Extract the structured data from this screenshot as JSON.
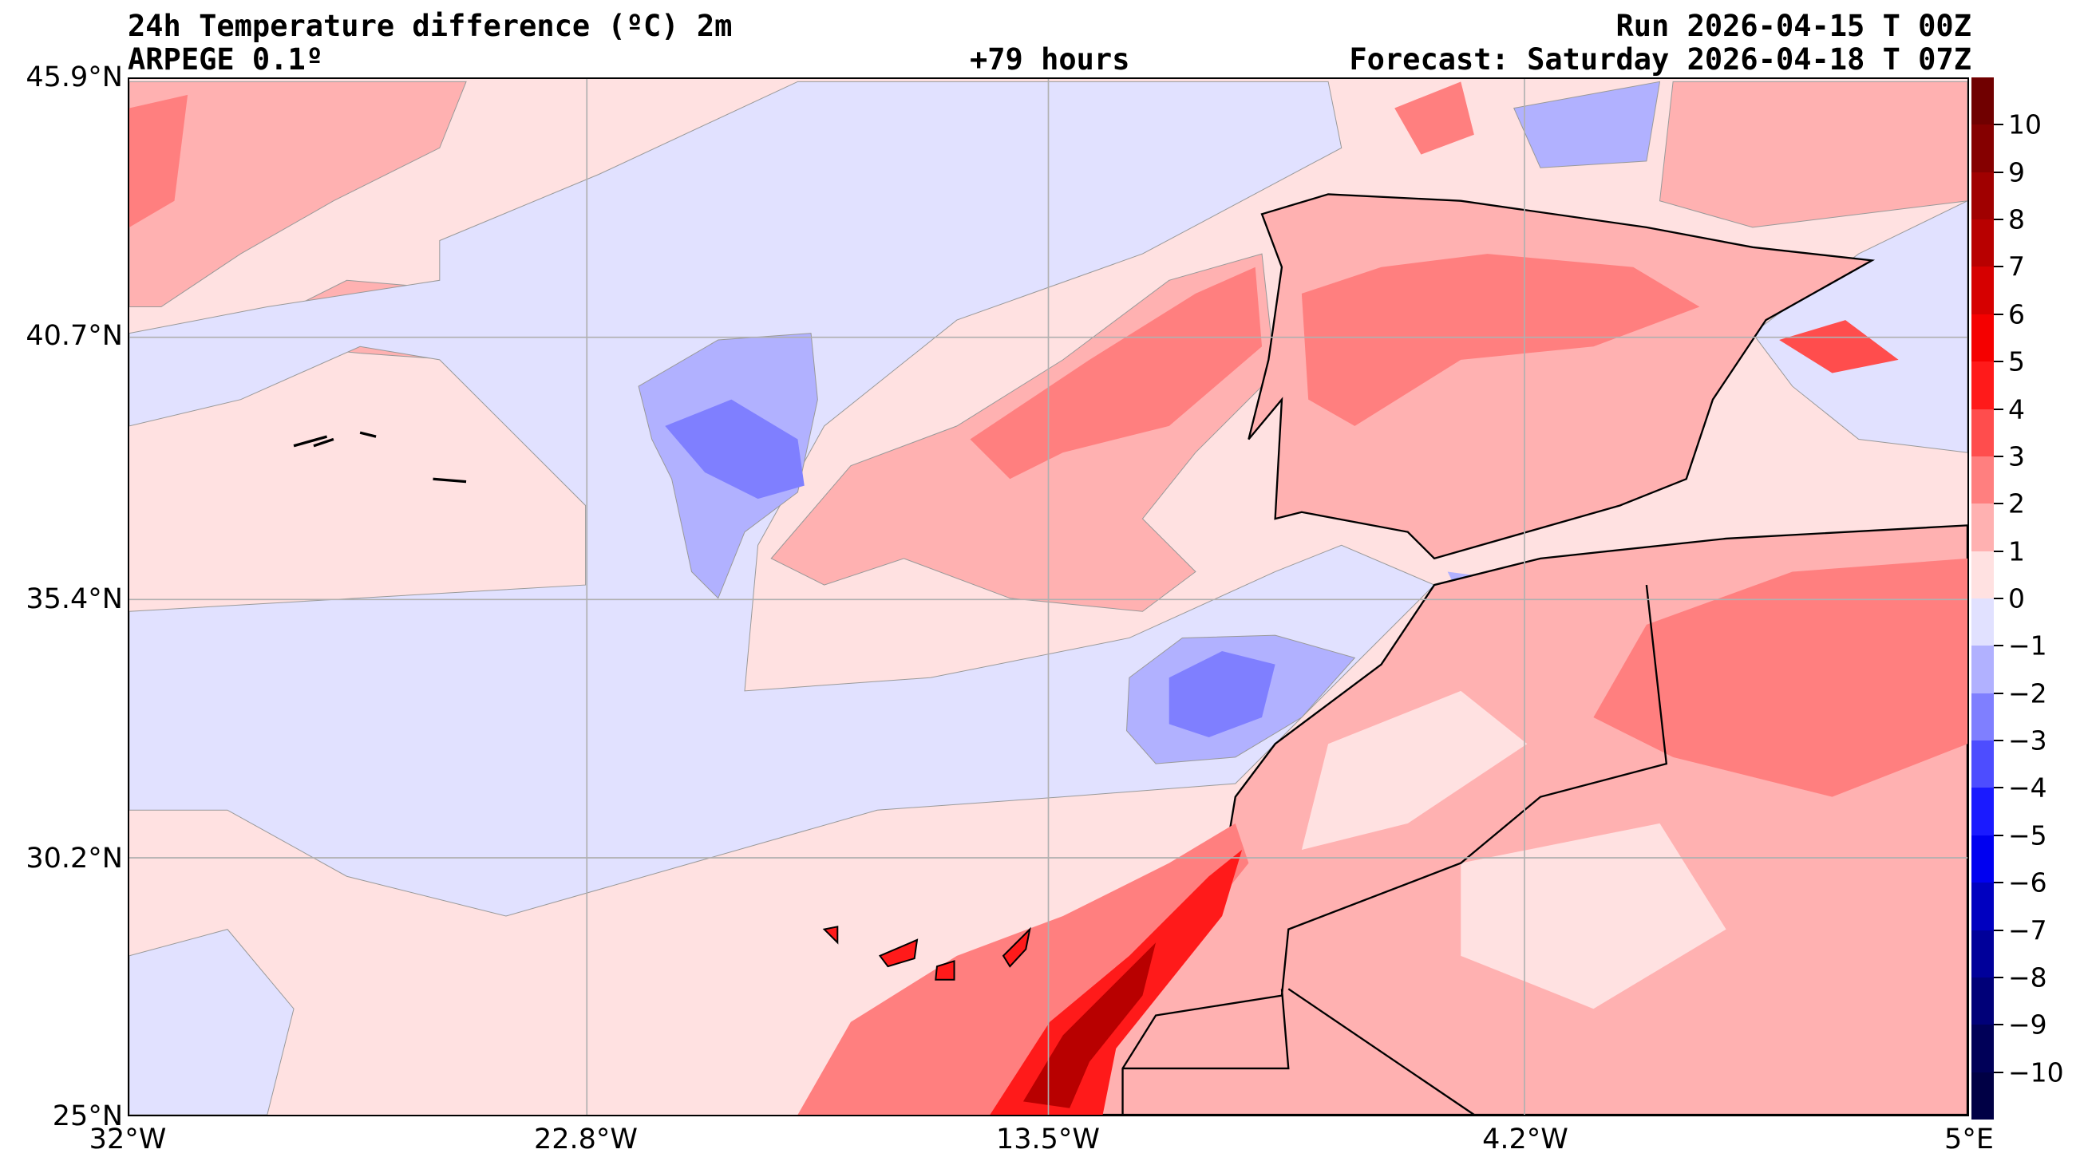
{
  "header": {
    "title": "24h Temperature difference (ºC) 2m",
    "model": "ARPEGE 0.1º",
    "lead": "+79 hours",
    "run": "Run 2026-04-15 T 00Z",
    "forecast": "Forecast: Saturday 2026-04-18 T 07Z"
  },
  "axes": {
    "lat_labels": [
      "45.9°N",
      "40.7°N",
      "35.4°N",
      "30.2°N",
      "25°N"
    ],
    "lon_labels": [
      "32°W",
      "22.8°W",
      "13.5°W",
      "4.2°W",
      "5°E"
    ]
  },
  "colorbar": {
    "tick_labels": [
      "10",
      "9",
      "8",
      "7",
      "6",
      "5",
      "4",
      "3",
      "2",
      "1",
      "0",
      "−1",
      "−2",
      "−3",
      "−4",
      "−5",
      "−6",
      "−7",
      "−8",
      "−9",
      "−10"
    ],
    "colors": [
      "#700000",
      "#850000",
      "#a00000",
      "#b80000",
      "#d60000",
      "#f50000",
      "#ff1a1a",
      "#ff4d4d",
      "#ff7f7f",
      "#ffb1b1",
      "#ffe1e1",
      "#e1e1ff",
      "#b1b1ff",
      "#7f7fff",
      "#4d4dff",
      "#1a1aff",
      "#0000f0",
      "#0000c0",
      "#00009a",
      "#000078",
      "#000058",
      "#000045"
    ]
  }
}
